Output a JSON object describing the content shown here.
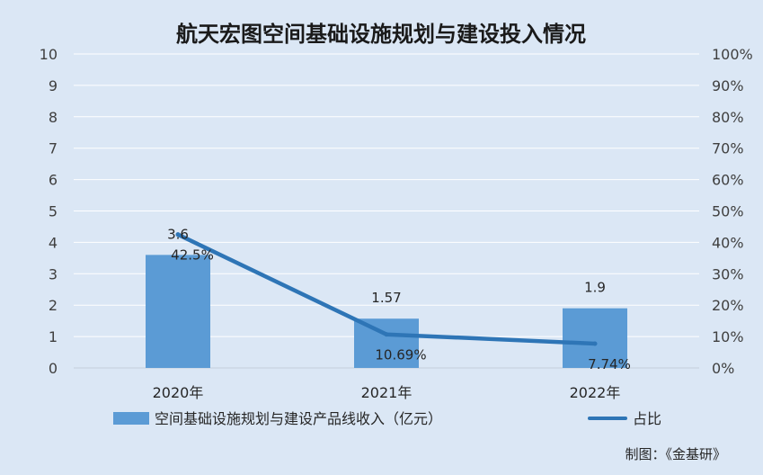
{
  "chart_data": {
    "type": "bar",
    "title": "航天宏图空间基础设施规划与建设投入情况",
    "categories": [
      "2020年",
      "2021年",
      "2022年"
    ],
    "series": [
      {
        "name": "空间基础设施规划与建设产品线收入（亿元）",
        "type": "bar",
        "axis": "left",
        "values": [
          3.6,
          1.57,
          1.9
        ],
        "labels": [
          "3.6",
          "1.57",
          "1.9"
        ],
        "color": "#5b9bd5"
      },
      {
        "name": "占比",
        "type": "line",
        "axis": "right",
        "values": [
          42.5,
          10.69,
          7.74
        ],
        "labels": [
          "42.5%",
          "10.69%",
          "7.74%"
        ],
        "color": "#2e75b6"
      }
    ],
    "y_left": {
      "range": [
        0,
        10
      ],
      "ticks": [
        "0",
        "1",
        "2",
        "3",
        "4",
        "5",
        "6",
        "7",
        "8",
        "9",
        "10"
      ]
    },
    "y_right": {
      "range": [
        0,
        100
      ],
      "ticks": [
        "0%",
        "10%",
        "20%",
        "30%",
        "40%",
        "50%",
        "60%",
        "70%",
        "80%",
        "90%",
        "100%"
      ]
    },
    "grid": true,
    "legend": "bottom"
  },
  "source": "制图：《金基研》"
}
